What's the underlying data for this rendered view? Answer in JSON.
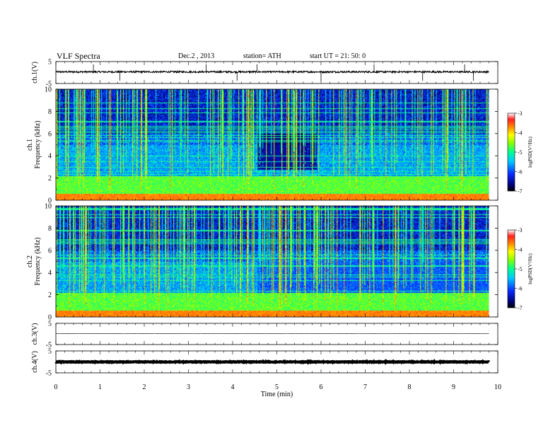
{
  "header": {
    "title": "VLF  Spectra",
    "date": "Dec.2  , 2013",
    "station": "station= ATH",
    "start": "start  UT  =   21: 50: 0"
  },
  "chart_data": [
    {
      "type": "line",
      "title": "",
      "ylabel": "ch.1(V)",
      "ylim": [
        -5,
        5
      ],
      "yticks": [
        "5",
        "-5"
      ],
      "xlim": [
        0,
        10
      ],
      "level": 0.3,
      "noise": 0.4,
      "spikes": [
        0.85,
        1.45,
        3.4,
        4.1,
        4.55,
        6.0,
        7.2,
        8.3,
        9.25,
        9.45
      ]
    },
    {
      "type": "heatmap",
      "title": "",
      "ylabel": "ch.1\nFrequency  (kHz)",
      "ylabel_lines": [
        "ch.1",
        "Frequency  (kHz)"
      ],
      "ylim": [
        0,
        10
      ],
      "yticks": [
        "0",
        "2",
        "4",
        "6",
        "8",
        "10"
      ],
      "xlim": [
        0,
        9.8
      ],
      "colorbar": {
        "label": "logPSD(V²/Hz)",
        "range": [
          -7,
          -3
        ],
        "ticks": [
          "-3",
          "-4",
          "-5",
          "-6",
          "-7"
        ]
      },
      "band_change_min": 4.55,
      "band_recover_min": 5.9
    },
    {
      "type": "heatmap",
      "title": "",
      "ylabel": "ch.2\nFrequency  (kHz)",
      "ylabel_lines": [
        "ch.2",
        "Frequency  (kHz)"
      ],
      "ylim": [
        0,
        10
      ],
      "yticks": [
        "0",
        "2",
        "4",
        "6",
        "8",
        "10"
      ],
      "xlim": [
        0,
        9.8
      ],
      "colorbar": {
        "label": "logPSD(V²/Hz)",
        "range": [
          -7,
          -3
        ],
        "ticks": [
          "-3",
          "-4",
          "-5",
          "-6",
          "-7"
        ]
      },
      "band_change_min": 4.55
    },
    {
      "type": "line",
      "title": "",
      "ylabel": "ch.3(V)",
      "ylim": [
        -5,
        5
      ],
      "yticks": [
        "5",
        "-5"
      ],
      "xlim": [
        0,
        10
      ],
      "level": 0.2,
      "noise": 0.05,
      "spikes": []
    },
    {
      "type": "line",
      "title": "",
      "ylabel": "ch.4(V)",
      "ylim": [
        -5,
        5
      ],
      "yticks": [
        "5",
        "-5"
      ],
      "xlim": [
        0,
        10
      ],
      "level": 0.0,
      "noise": 0.15,
      "spikes": []
    }
  ],
  "xaxis": {
    "label": "Time  (min)",
    "range": [
      0,
      10
    ],
    "ticks": [
      "0",
      "1",
      "2",
      "3",
      "4",
      "5",
      "6",
      "7",
      "8",
      "9",
      "10"
    ]
  }
}
